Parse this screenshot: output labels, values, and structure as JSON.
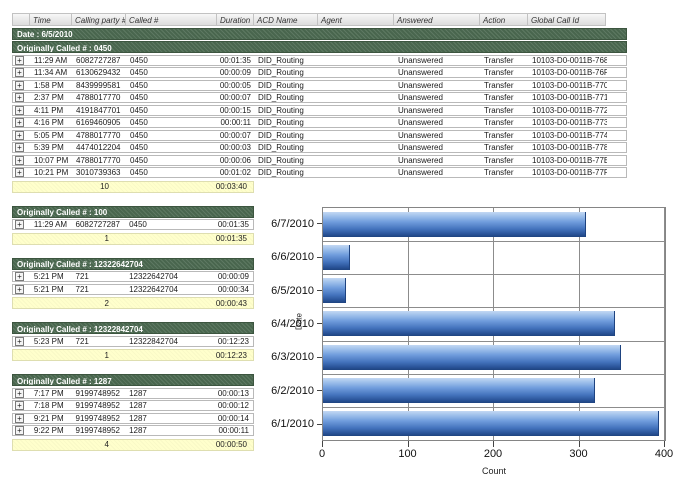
{
  "table": {
    "columns": [
      "Time",
      "Calling party #",
      "Called #",
      "Duration",
      "ACD Name",
      "Agent",
      "Answered",
      "Action",
      "Global Call Id"
    ],
    "date_label": "Date : 6/5/2010",
    "expand_symbol": "+",
    "groups": [
      {
        "label": "Originally Called # : 0450",
        "wide": true,
        "rows": [
          [
            "11:29 AM",
            "6082727287",
            "0450",
            "00:01:35",
            "DID_Routing",
            "",
            "Unanswered",
            "Transfer",
            "10103-D0-0011B-768"
          ],
          [
            "11:34 AM",
            "6130629432",
            "0450",
            "00:00:09",
            "DID_Routing",
            "",
            "Unanswered",
            "Transfer",
            "10103-D0-0011B-76F"
          ],
          [
            "1:58 PM",
            "8439999581",
            "0450",
            "00:00:05",
            "DID_Routing",
            "",
            "Unanswered",
            "Transfer",
            "10103-D0-0011B-770"
          ],
          [
            "2:37 PM",
            "4788017770",
            "0450",
            "00:00:07",
            "DID_Routing",
            "",
            "Unanswered",
            "Transfer",
            "10103-D0-0011B-771"
          ],
          [
            "4:11 PM",
            "4191847701",
            "0450",
            "00:00:15",
            "DID_Routing",
            "",
            "Unanswered",
            "Transfer",
            "10103-D0-0011B-772"
          ],
          [
            "4:16 PM",
            "6169460905",
            "0450",
            "00:00:11",
            "DID_Routing",
            "",
            "Unanswered",
            "Transfer",
            "10103-D0-0011B-773"
          ],
          [
            "5:05 PM",
            "4788017770",
            "0450",
            "00:00:07",
            "DID_Routing",
            "",
            "Unanswered",
            "Transfer",
            "10103-D0-0011B-774"
          ],
          [
            "5:39 PM",
            "4474012204",
            "0450",
            "00:00:03",
            "DID_Routing",
            "",
            "Unanswered",
            "Transfer",
            "10103-D0-0011B-778"
          ],
          [
            "10:07 PM",
            "4788017770",
            "0450",
            "00:00:06",
            "DID_Routing",
            "",
            "Unanswered",
            "Transfer",
            "10103-D0-0011B-77E"
          ],
          [
            "10:21 PM",
            "3010739363",
            "0450",
            "00:01:02",
            "DID_Routing",
            "",
            "Unanswered",
            "Transfer",
            "10103-D0-0011B-77F"
          ]
        ],
        "summary": {
          "count": "10",
          "total": "00:03:40"
        }
      },
      {
        "label": "Originally Called # : 100",
        "wide": false,
        "rows": [
          [
            "11:29 AM",
            "6082727287",
            "0450",
            "00:01:35"
          ]
        ],
        "summary": {
          "count": "1",
          "total": "00:01:35"
        }
      },
      {
        "label": "Originally Called # : 12322642704",
        "wide": false,
        "rows": [
          [
            "5:21 PM",
            "721",
            "12322642704",
            "00:00:09"
          ],
          [
            "5:21 PM",
            "721",
            "12322642704",
            "00:00:34"
          ]
        ],
        "summary": {
          "count": "2",
          "total": "00:00:43"
        }
      },
      {
        "label": "Originally Called # : 12322842704",
        "wide": false,
        "rows": [
          [
            "5:23 PM",
            "721",
            "12322842704",
            "00:12:23"
          ]
        ],
        "summary": {
          "count": "1",
          "total": "00:12:23"
        }
      },
      {
        "label": "Originally Called # : 1287",
        "wide": false,
        "rows": [
          [
            "7:17 PM",
            "9199748952",
            "1287",
            "00:00:13"
          ],
          [
            "7:18 PM",
            "9199748952",
            "1287",
            "00:00:12"
          ],
          [
            "9:21 PM",
            "9199748952",
            "1287",
            "00:00:14"
          ],
          [
            "9:22 PM",
            "9199748952",
            "1287",
            "00:00:11"
          ]
        ],
        "summary": {
          "count": "4",
          "total": "00:00:50"
        }
      }
    ]
  },
  "chart_data": {
    "type": "bar",
    "orientation": "horizontal",
    "categories": [
      "6/7/2010",
      "6/6/2010",
      "6/5/2010",
      "6/4/2010",
      "6/3/2010",
      "6/2/2010",
      "6/1/2010"
    ],
    "values": [
      308,
      32,
      27,
      341,
      348,
      318,
      393
    ],
    "title": "",
    "xlabel": "Count",
    "ylabel": "Date",
    "xlim": [
      0,
      400
    ],
    "xticks": [
      0,
      100,
      200,
      300,
      400
    ],
    "grid": true,
    "legend": "none",
    "bar_color_top": "#c3d8f3",
    "bar_color_mid": "#6f9cdc",
    "bar_color_bottom": "#1e4380"
  },
  "colors": {
    "group_bar_green": "#4d6b52",
    "summary_yellow": "#ffffcc",
    "header_gray": "#dcdcdc"
  }
}
